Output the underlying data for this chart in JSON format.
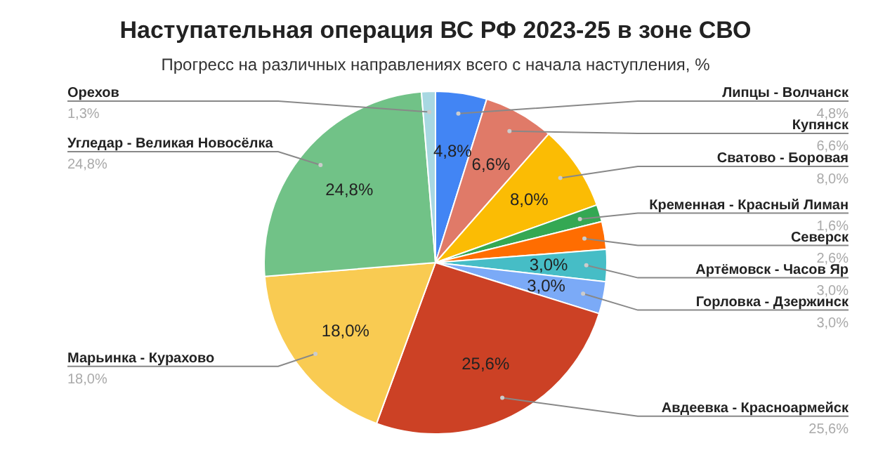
{
  "chart_data": {
    "type": "pie",
    "title": "Наступательная операция ВС РФ 2023-25 в зоне СВО",
    "subtitle": "Прогресс на различных направлениях всего с начала наступления, %",
    "categories": [
      "Липцы - Волчанск",
      "Купянск",
      "Сватово - Боровая",
      "Кременная - Красный Лиман",
      "Северск",
      "Артёмовск - Часов Яр",
      "Горловка - Дзержинск",
      "Авдеевка - Красноармейск",
      "Марьинка - Курахово",
      "Угледар - Великая Новосёлка",
      "Орехов"
    ],
    "values": [
      4.8,
      6.6,
      8.0,
      1.6,
      2.6,
      3.0,
      3.0,
      25.6,
      18.0,
      24.8,
      1.3
    ],
    "colors": [
      "#4285f4",
      "#e07a68",
      "#fbbc04",
      "#34a853",
      "#ff6d01",
      "#46bdc6",
      "#7baaf7",
      "#cc4125",
      "#f9cb52",
      "#71c287",
      "#a8d8e2"
    ],
    "value_labels": [
      "4,8%",
      "6,6%",
      "8,0%",
      "1,6%",
      "2,6%",
      "3,0%",
      "3,0%",
      "25,6%",
      "18,0%",
      "24,8%",
      "1,3%"
    ],
    "data_labels": true
  }
}
